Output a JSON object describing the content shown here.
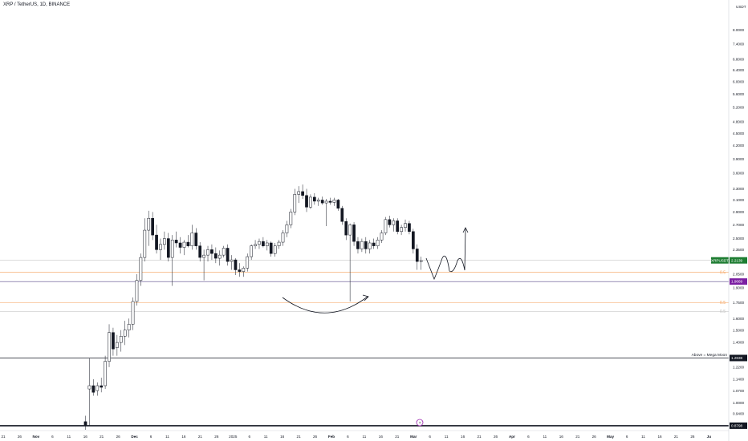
{
  "header": {
    "title": "XRP / TetherUS, 1D, BINANCE"
  },
  "chart_data": {
    "type": "candlestick",
    "title": "XRP / TetherUS, 1D, BINANCE",
    "currency_label": "USDT",
    "y_scale": "log",
    "ylim": [
      0.86,
      9.3
    ],
    "y_ticks": [
      "8.0000",
      "7.4000",
      "6.8000",
      "6.4000",
      "6.0000",
      "5.6000",
      "5.2000",
      "4.8000",
      "4.5000",
      "4.2000",
      "3.9000",
      "3.6000",
      "3.3000",
      "3.1000",
      "2.9000",
      "2.7000",
      "2.5000",
      "2.3500",
      "2.2000",
      "2.0500",
      "1.9000",
      "1.7500",
      "1.6000",
      "1.5000",
      "1.4000",
      "1.3000",
      "1.2200",
      "1.1400",
      "1.0700",
      "1.0000",
      "0.9400"
    ],
    "x_ticks": [
      "21",
      "26",
      "Nov",
      "6",
      "11",
      "16",
      "21",
      "26",
      "Dec",
      "6",
      "11",
      "16",
      "21",
      "26",
      "2025",
      "6",
      "11",
      "16",
      "21",
      "26",
      "Feb",
      "6",
      "11",
      "16",
      "21",
      "Mar",
      "6",
      "11",
      "16",
      "21",
      "26",
      "Apr",
      "6",
      "11",
      "16",
      "21",
      "26",
      "May",
      "6",
      "11",
      "16",
      "21",
      "26",
      "Ju"
    ],
    "price_tags": [
      {
        "label": "XRPUSDT",
        "value": "2.2139",
        "color": "#1e7d32"
      },
      {
        "label": "",
        "value": "1.9669",
        "color": "#7b1fa2"
      },
      {
        "label": "",
        "value": "1.2838",
        "color": "#131722"
      },
      {
        "label": "",
        "value": "0.8798",
        "color": "#131722"
      }
    ],
    "horizontal_levels": [
      {
        "value": 2.2139,
        "color": "#c8c8c8",
        "width": 0.6
      },
      {
        "value": 2.07,
        "color": "#f5a05a",
        "width": 0.6,
        "label": "0.5"
      },
      {
        "value": 1.9669,
        "color": "#5a4a8a",
        "width": 0.6
      },
      {
        "value": 1.75,
        "color": "#f5a05a",
        "width": 0.6,
        "label": "0.5"
      },
      {
        "value": 1.665,
        "color": "#bbbbbb",
        "width": 0.5,
        "label": "0.5"
      },
      {
        "value": 1.2838,
        "color": "#131722",
        "width": 0.8
      },
      {
        "value": 0.8798,
        "color": "#131722",
        "width": 1.6
      }
    ],
    "annotations": [
      {
        "text": "Above = Mega Moon",
        "value": 1.2838
      }
    ],
    "candles": [
      {
        "o": 0.9,
        "h": 0.93,
        "l": 0.86,
        "c": 0.88
      },
      {
        "o": 1.08,
        "h": 1.28,
        "l": 0.88,
        "c": 1.1
      },
      {
        "o": 1.1,
        "h": 1.14,
        "l": 1.04,
        "c": 1.06
      },
      {
        "o": 1.07,
        "h": 1.12,
        "l": 1.04,
        "c": 1.1
      },
      {
        "o": 1.1,
        "h": 1.15,
        "l": 1.06,
        "c": 1.09
      },
      {
        "o": 1.1,
        "h": 1.3,
        "l": 1.08,
        "c": 1.26
      },
      {
        "o": 1.26,
        "h": 1.55,
        "l": 1.22,
        "c": 1.48
      },
      {
        "o": 1.48,
        "h": 1.52,
        "l": 1.3,
        "c": 1.35
      },
      {
        "o": 1.36,
        "h": 1.46,
        "l": 1.3,
        "c": 1.4
      },
      {
        "o": 1.4,
        "h": 1.5,
        "l": 1.33,
        "c": 1.45
      },
      {
        "o": 1.45,
        "h": 1.58,
        "l": 1.38,
        "c": 1.5
      },
      {
        "o": 1.5,
        "h": 1.6,
        "l": 1.44,
        "c": 1.55
      },
      {
        "o": 1.55,
        "h": 1.8,
        "l": 1.5,
        "c": 1.76
      },
      {
        "o": 1.76,
        "h": 2.05,
        "l": 1.72,
        "c": 1.98
      },
      {
        "o": 1.98,
        "h": 2.3,
        "l": 1.92,
        "c": 2.25
      },
      {
        "o": 2.25,
        "h": 2.8,
        "l": 2.2,
        "c": 2.62
      },
      {
        "o": 2.62,
        "h": 2.92,
        "l": 2.4,
        "c": 2.8
      },
      {
        "o": 2.8,
        "h": 2.9,
        "l": 2.48,
        "c": 2.55
      },
      {
        "o": 2.55,
        "h": 2.7,
        "l": 2.3,
        "c": 2.35
      },
      {
        "o": 2.35,
        "h": 2.5,
        "l": 2.22,
        "c": 2.42
      },
      {
        "o": 2.42,
        "h": 2.6,
        "l": 2.35,
        "c": 2.5
      },
      {
        "o": 2.5,
        "h": 2.58,
        "l": 2.2,
        "c": 2.25
      },
      {
        "o": 2.25,
        "h": 2.55,
        "l": 1.92,
        "c": 2.48
      },
      {
        "o": 2.48,
        "h": 2.6,
        "l": 2.38,
        "c": 2.44
      },
      {
        "o": 2.44,
        "h": 2.52,
        "l": 2.3,
        "c": 2.38
      },
      {
        "o": 2.38,
        "h": 2.48,
        "l": 2.28,
        "c": 2.45
      },
      {
        "o": 2.45,
        "h": 2.55,
        "l": 2.38,
        "c": 2.4
      },
      {
        "o": 2.4,
        "h": 2.7,
        "l": 2.35,
        "c": 2.58
      },
      {
        "o": 2.58,
        "h": 2.65,
        "l": 2.35,
        "c": 2.4
      },
      {
        "o": 2.4,
        "h": 2.45,
        "l": 2.2,
        "c": 2.25
      },
      {
        "o": 2.25,
        "h": 2.35,
        "l": 1.98,
        "c": 2.28
      },
      {
        "o": 2.28,
        "h": 2.4,
        "l": 2.2,
        "c": 2.35
      },
      {
        "o": 2.35,
        "h": 2.42,
        "l": 2.22,
        "c": 2.3
      },
      {
        "o": 2.3,
        "h": 2.38,
        "l": 2.18,
        "c": 2.24
      },
      {
        "o": 2.24,
        "h": 2.34,
        "l": 2.15,
        "c": 2.28
      },
      {
        "o": 2.28,
        "h": 2.4,
        "l": 2.25,
        "c": 2.37
      },
      {
        "o": 2.37,
        "h": 2.42,
        "l": 2.15,
        "c": 2.2
      },
      {
        "o": 2.2,
        "h": 2.28,
        "l": 2.1,
        "c": 2.22
      },
      {
        "o": 2.22,
        "h": 2.24,
        "l": 2.04,
        "c": 2.1
      },
      {
        "o": 2.1,
        "h": 2.18,
        "l": 2.02,
        "c": 2.08
      },
      {
        "o": 2.08,
        "h": 2.14,
        "l": 2.02,
        "c": 2.12
      },
      {
        "o": 2.12,
        "h": 2.3,
        "l": 2.08,
        "c": 2.26
      },
      {
        "o": 2.26,
        "h": 2.42,
        "l": 2.22,
        "c": 2.4
      },
      {
        "o": 2.4,
        "h": 2.48,
        "l": 2.36,
        "c": 2.42
      },
      {
        "o": 2.42,
        "h": 2.5,
        "l": 2.36,
        "c": 2.46
      },
      {
        "o": 2.46,
        "h": 2.52,
        "l": 2.38,
        "c": 2.4
      },
      {
        "o": 2.4,
        "h": 2.48,
        "l": 2.34,
        "c": 2.44
      },
      {
        "o": 2.44,
        "h": 2.46,
        "l": 2.26,
        "c": 2.3
      },
      {
        "o": 2.3,
        "h": 2.44,
        "l": 2.26,
        "c": 2.4
      },
      {
        "o": 2.4,
        "h": 2.48,
        "l": 2.36,
        "c": 2.45
      },
      {
        "o": 2.45,
        "h": 2.62,
        "l": 2.4,
        "c": 2.58
      },
      {
        "o": 2.58,
        "h": 2.76,
        "l": 2.52,
        "c": 2.7
      },
      {
        "o": 2.7,
        "h": 2.95,
        "l": 2.65,
        "c": 2.9
      },
      {
        "o": 2.9,
        "h": 3.3,
        "l": 2.85,
        "c": 3.2
      },
      {
        "o": 3.2,
        "h": 3.35,
        "l": 3.05,
        "c": 3.25
      },
      {
        "o": 3.25,
        "h": 3.38,
        "l": 3.12,
        "c": 3.18
      },
      {
        "o": 3.18,
        "h": 3.3,
        "l": 2.9,
        "c": 2.98
      },
      {
        "o": 2.98,
        "h": 3.2,
        "l": 2.95,
        "c": 3.15
      },
      {
        "o": 3.15,
        "h": 3.22,
        "l": 3.02,
        "c": 3.08
      },
      {
        "o": 3.08,
        "h": 3.14,
        "l": 3.0,
        "c": 3.1
      },
      {
        "o": 3.1,
        "h": 3.16,
        "l": 3.02,
        "c": 3.05
      },
      {
        "o": 3.05,
        "h": 3.12,
        "l": 2.68,
        "c": 3.08
      },
      {
        "o": 3.08,
        "h": 3.14,
        "l": 3.02,
        "c": 3.06
      },
      {
        "o": 3.06,
        "h": 3.14,
        "l": 3.0,
        "c": 3.1
      },
      {
        "o": 3.1,
        "h": 3.12,
        "l": 2.92,
        "c": 2.96
      },
      {
        "o": 2.96,
        "h": 3.0,
        "l": 2.7,
        "c": 2.75
      },
      {
        "o": 2.75,
        "h": 2.8,
        "l": 2.48,
        "c": 2.55
      },
      {
        "o": 2.55,
        "h": 2.72,
        "l": 1.76,
        "c": 2.7
      },
      {
        "o": 2.7,
        "h": 2.74,
        "l": 2.4,
        "c": 2.46
      },
      {
        "o": 2.46,
        "h": 2.52,
        "l": 2.3,
        "c": 2.36
      },
      {
        "o": 2.36,
        "h": 2.5,
        "l": 2.32,
        "c": 2.46
      },
      {
        "o": 2.46,
        "h": 2.52,
        "l": 2.3,
        "c": 2.36
      },
      {
        "o": 2.36,
        "h": 2.48,
        "l": 2.3,
        "c": 2.44
      },
      {
        "o": 2.44,
        "h": 2.5,
        "l": 2.36,
        "c": 2.4
      },
      {
        "o": 2.4,
        "h": 2.52,
        "l": 2.36,
        "c": 2.48
      },
      {
        "o": 2.48,
        "h": 2.62,
        "l": 2.44,
        "c": 2.58
      },
      {
        "o": 2.58,
        "h": 2.82,
        "l": 2.55,
        "c": 2.78
      },
      {
        "o": 2.78,
        "h": 2.84,
        "l": 2.66,
        "c": 2.7
      },
      {
        "o": 2.7,
        "h": 2.8,
        "l": 2.6,
        "c": 2.76
      },
      {
        "o": 2.76,
        "h": 2.8,
        "l": 2.56,
        "c": 2.6
      },
      {
        "o": 2.6,
        "h": 2.7,
        "l": 2.55,
        "c": 2.66
      },
      {
        "o": 2.66,
        "h": 2.78,
        "l": 2.6,
        "c": 2.72
      },
      {
        "o": 2.72,
        "h": 2.76,
        "l": 2.56,
        "c": 2.6
      },
      {
        "o": 2.6,
        "h": 2.64,
        "l": 2.3,
        "c": 2.36
      },
      {
        "o": 2.36,
        "h": 2.42,
        "l": 2.1,
        "c": 2.2
      },
      {
        "o": 2.2,
        "h": 2.26,
        "l": 2.1,
        "c": 2.21
      }
    ]
  }
}
